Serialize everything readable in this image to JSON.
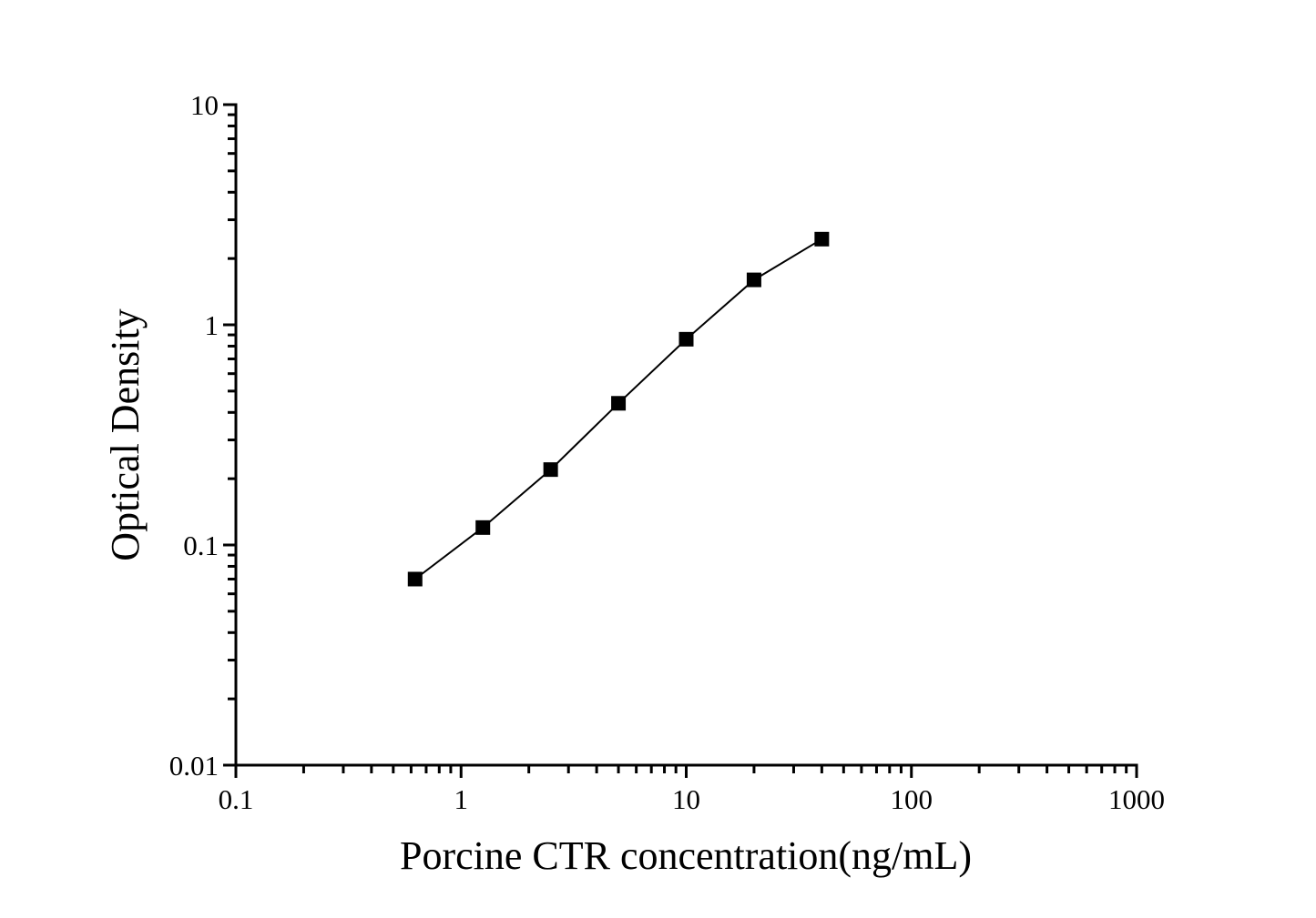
{
  "figure": {
    "background_color": "#ffffff",
    "ink_color": "#000000"
  },
  "chart_data": {
    "type": "line",
    "title": "",
    "xlabel": "Porcine CTR concentration(ng/mL)",
    "ylabel": "Optical Density",
    "x_scale": "log",
    "y_scale": "log",
    "xlim": [
      0.1,
      1000
    ],
    "ylim": [
      0.01,
      10
    ],
    "x_ticks": [
      0.1,
      1,
      10,
      100,
      1000
    ],
    "x_tick_labels": [
      "0.1",
      "1",
      "10",
      "100",
      "1000"
    ],
    "y_ticks": [
      0.01,
      0.1,
      1,
      10
    ],
    "y_tick_labels": [
      "0.01",
      "0.1",
      "1",
      "10"
    ],
    "grid": false,
    "legend_position": "none",
    "series": [
      {
        "marker": "square",
        "marker_color": "#000000",
        "line_color": "#000000",
        "x": [
          0.625,
          1.25,
          2.5,
          5,
          10,
          20,
          40
        ],
        "y": [
          0.07,
          0.12,
          0.22,
          0.44,
          0.86,
          1.6,
          2.45
        ]
      }
    ]
  }
}
